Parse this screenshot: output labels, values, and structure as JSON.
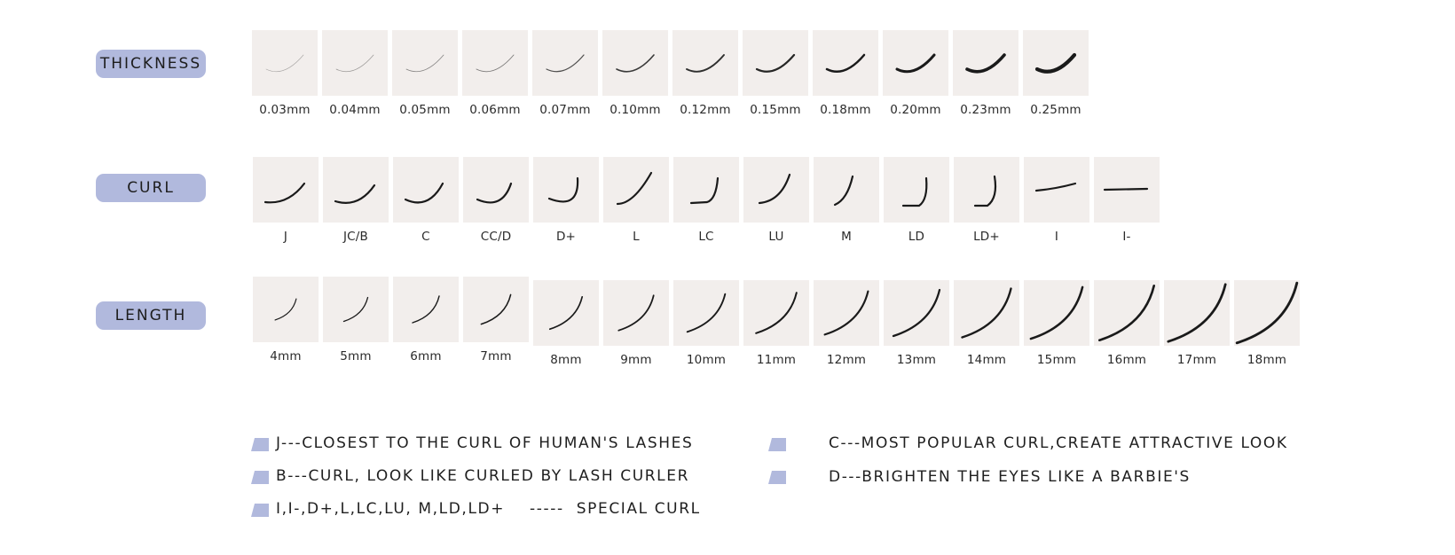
{
  "sections": {
    "thickness": {
      "label": "THICKNESS",
      "items": [
        "0.03mm",
        "0.04mm",
        "0.05mm",
        "0.06mm",
        "0.07mm",
        "0.10mm",
        "0.12mm",
        "0.15mm",
        "0.18mm",
        "0.20mm",
        "0.23mm",
        "0.25mm"
      ]
    },
    "curl": {
      "label": "CURL",
      "items": [
        "J",
        "JC/B",
        "C",
        "CC/D",
        "D+",
        "L",
        "LC",
        "LU",
        "M",
        "LD",
        "LD+",
        "I",
        "I-"
      ]
    },
    "length": {
      "label": "LENGTH",
      "items": [
        "4mm",
        "5mm",
        "6mm",
        "7mm",
        "8mm",
        "9mm",
        "10mm",
        "11mm",
        "12mm",
        "13mm",
        "14mm",
        "15mm",
        "16mm",
        "17mm",
        "18mm"
      ]
    }
  },
  "notes": {
    "j": "J---CLOSEST TO THE CURL OF HUMAN'S LASHES",
    "b": "B---CURL, LOOK LIKE CURLED BY LASH CURLER",
    "special": "I,I-,D+,L,LC,LU, M,LD,LD+    -----  SPECIAL CURL",
    "c": "C---MOST POPULAR CURL,CREATE ATTRACTIVE LOOK",
    "d": "D---BRIGHTEN THE EYES LIKE A BARBIE'S"
  },
  "colors": {
    "accent": "#b1b9dd",
    "tile": "#f2eeec",
    "lash": "#1a1a1a"
  }
}
